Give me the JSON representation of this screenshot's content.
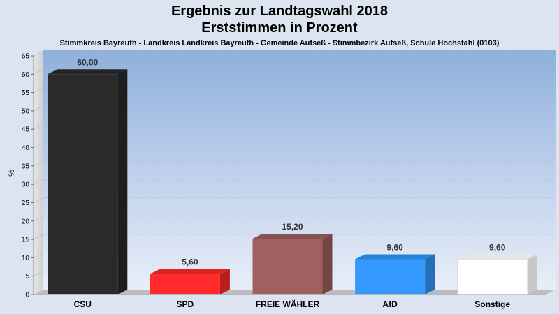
{
  "chart_data": {
    "type": "bar",
    "title": "Ergebnis zur Landtagswahl 2018",
    "title_line2": "Erststimmen in Prozent",
    "subtitle": "Stimmkreis Bayreuth - Landkreis Landkreis Bayreuth - Gemeinde Aufseß - Stimmbezirk Aufseß, Schule Hochstahl (0103)",
    "ylabel": "%",
    "xlabel": "",
    "ylim": [
      0,
      65
    ],
    "ytick_step": 5,
    "grid": true,
    "categories": [
      "CSU",
      "SPD",
      "FREIE WÄHLER",
      "AfD",
      "Sonstige"
    ],
    "values": [
      60.0,
      5.6,
      15.2,
      9.6,
      9.6
    ],
    "value_labels": [
      "60,00",
      "5,60",
      "15,20",
      "9,60",
      "9,60"
    ],
    "colors": [
      "#2a2a2a",
      "#ff2a2a",
      "#a06060",
      "#3399ff",
      "#ffffff"
    ]
  }
}
